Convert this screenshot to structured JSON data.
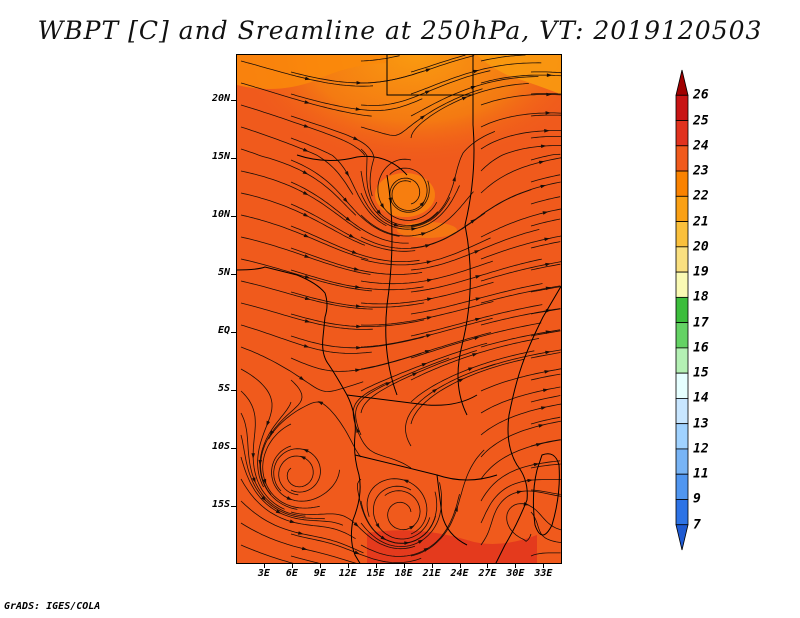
{
  "title": "WBPT [C] and Sreamline at 250hPa, VT: 2019120503",
  "credit": "GrADS: IGES/COLA",
  "map": {
    "variable": "Wet-bulb potential temperature [C]",
    "level": "250hPa",
    "valid_time": "2019120503",
    "lat_range": [
      -20,
      24
    ],
    "lon_range": [
      0,
      35
    ],
    "lat_labels": [
      {
        "text": "20N",
        "lat": 20
      },
      {
        "text": "15N",
        "lat": 15
      },
      {
        "text": "10N",
        "lat": 10
      },
      {
        "text": "5N",
        "lat": 5
      },
      {
        "text": "EQ",
        "lat": 0
      },
      {
        "text": "5S",
        "lat": -5
      },
      {
        "text": "10S",
        "lat": -10
      },
      {
        "text": "15S",
        "lat": -15
      }
    ],
    "lon_labels": [
      {
        "text": "3E",
        "lon": 3
      },
      {
        "text": "6E",
        "lon": 6
      },
      {
        "text": "9E",
        "lon": 9
      },
      {
        "text": "12E",
        "lon": 12
      },
      {
        "text": "15E",
        "lon": 15
      },
      {
        "text": "18E",
        "lon": 18
      },
      {
        "text": "21E",
        "lon": 21
      },
      {
        "text": "24E",
        "lon": 24
      },
      {
        "text": "27E",
        "lon": 27
      },
      {
        "text": "30E",
        "lon": 30
      },
      {
        "text": "33E",
        "lon": 33
      }
    ],
    "dominant_value_range": "23-24",
    "field_color": "#f05a1c"
  },
  "colorbar": {
    "labels": [
      "26",
      "25",
      "24",
      "23",
      "22",
      "21",
      "20",
      "19",
      "18",
      "17",
      "16",
      "15",
      "14",
      "13",
      "12",
      "11",
      "9",
      "7"
    ],
    "colors": [
      "#a00000",
      "#c81414",
      "#e1321e",
      "#f05a1c",
      "#fa8200",
      "#faa014",
      "#fac03c",
      "#fae080",
      "#fafab4",
      "#3cbe3c",
      "#64d264",
      "#b4f0b4",
      "#e6ffff",
      "#c8e6ff",
      "#a0d2ff",
      "#78b4f5",
      "#5096f0",
      "#2d73e6",
      "#1e5ad2"
    ]
  }
}
